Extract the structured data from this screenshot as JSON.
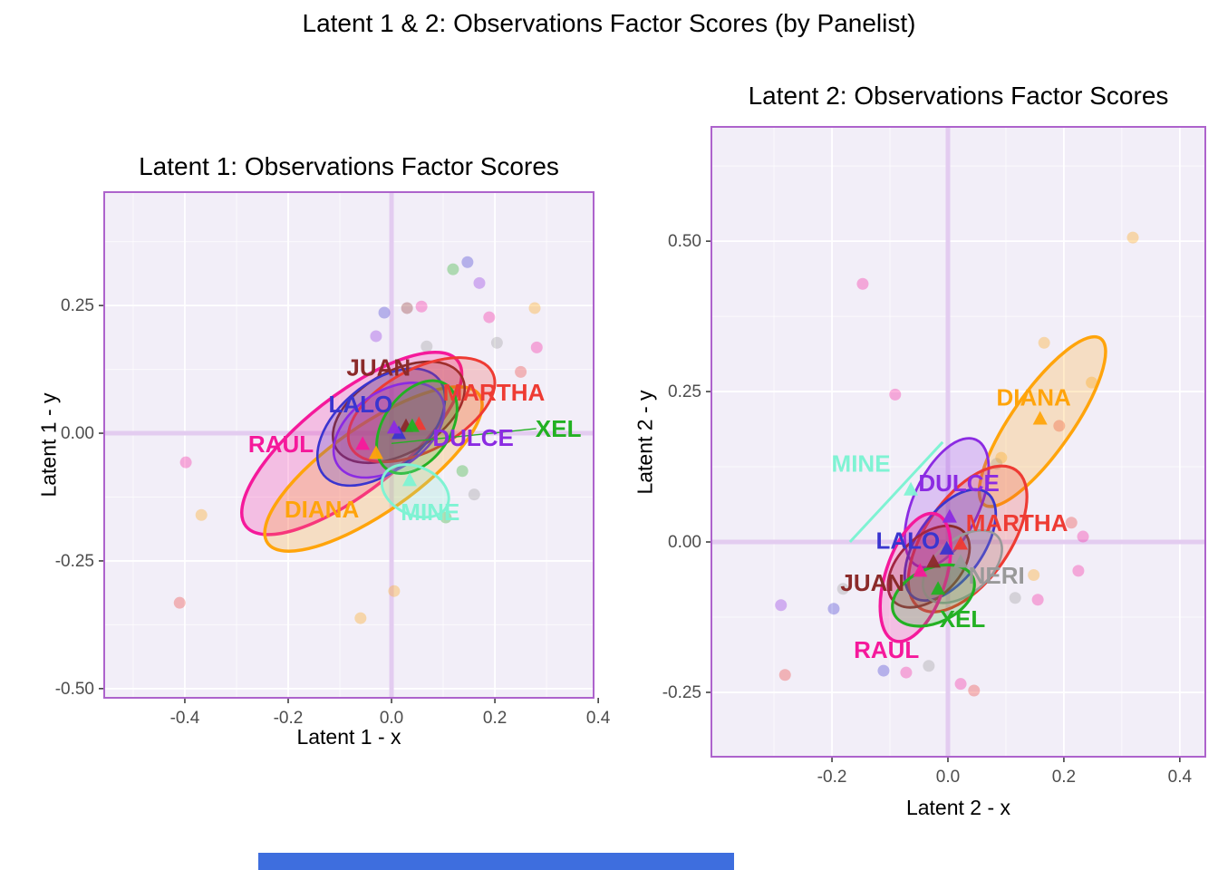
{
  "figure": {
    "title": "Latent 1 & 2: Observations Factor Scores (by Panelist)",
    "bottom_bar_color": "#3E6EDE"
  },
  "palette": {
    "JUAN": "#8B2A2A",
    "LALO": "#3A35CF",
    "MARTHA": "#EE3B33",
    "RAUL": "#F5199B",
    "DULCE": "#8B2BE2",
    "XEL": "#23B123",
    "DIANA": "#FFA40B",
    "MINE": "#7FF3D3",
    "NERI": "#999999"
  },
  "style": {
    "panel_bg": "#F2EEF8",
    "panel_border": "#AD63CC",
    "grid_major": "#FFFFFF",
    "grid_minor": "#FFFFFF",
    "zero_line": "#E3CCF0",
    "tick_color": "#333333",
    "tick_text_color": "#4D4D4D"
  },
  "chart_data": [
    {
      "type": "scatter",
      "title": "Latent 1: Observations Factor Scores",
      "xlabel": "Latent 1 - x",
      "ylabel": "Latent 1 - y",
      "xlim": [
        -0.556,
        0.391
      ],
      "ylim": [
        -0.518,
        0.472
      ],
      "grid": true,
      "legend": "none",
      "xticks": {
        "values": [
          -0.4,
          -0.2,
          0.0,
          0.2,
          0.4
        ],
        "labels": [
          "-0.4",
          "-0.2",
          "0.0",
          "0.2",
          "0.4"
        ],
        "minor": [
          -0.5,
          -0.3,
          -0.1,
          0.1,
          0.3
        ]
      },
      "yticks": {
        "values": [
          -0.5,
          -0.25,
          0.0,
          0.25
        ],
        "labels": [
          "-0.50",
          "-0.25",
          "0.00",
          "0.25"
        ],
        "minor": [
          -0.375,
          -0.125,
          0.125,
          0.375
        ]
      },
      "groups": [
        {
          "name": "RAUL",
          "ellipse": {
            "cx": -0.077,
            "cy": -0.02,
            "rx": 0.26,
            "ry": 0.095,
            "angle": 38,
            "lw": 3.5
          },
          "mean": [
            -0.056,
            -0.021
          ],
          "label": {
            "x": -0.214,
            "y": -0.021
          }
        },
        {
          "name": "DIANA",
          "ellipse": {
            "cx": -0.035,
            "cy": -0.07,
            "rx": 0.25,
            "ry": 0.085,
            "angle": 35,
            "lw": 3.5
          },
          "mean": [
            -0.03,
            -0.039
          ],
          "label": {
            "x": -0.135,
            "y": -0.149
          }
        },
        {
          "name": "JUAN",
          "ellipse": {
            "cx": 0.014,
            "cy": 0.041,
            "rx": 0.14,
            "ry": 0.08,
            "angle": 30,
            "lw": 2.6
          },
          "mean": [
            0.028,
            0.014
          ],
          "label": {
            "x": -0.025,
            "y": 0.129
          }
        },
        {
          "name": "LALO",
          "ellipse": {
            "cx": -0.02,
            "cy": 0.012,
            "rx": 0.145,
            "ry": 0.085,
            "angle": 40,
            "lw": 2.6
          },
          "mean": [
            0.014,
            0.0
          ],
          "label": {
            "x": -0.06,
            "y": 0.057
          }
        },
        {
          "name": "MARTHA",
          "ellipse": {
            "cx": 0.058,
            "cy": 0.046,
            "rx": 0.155,
            "ry": 0.08,
            "angle": 28,
            "lw": 3.0
          },
          "mean": [
            0.053,
            0.018
          ],
          "label": {
            "x": 0.198,
            "y": 0.08
          }
        },
        {
          "name": "DULCE",
          "ellipse": {
            "cx": -0.005,
            "cy": 0.006,
            "rx": 0.12,
            "ry": 0.075,
            "angle": 35,
            "lw": 2.6
          },
          "mean": [
            0.005,
            0.011
          ],
          "label": {
            "x": 0.158,
            "y": -0.009
          }
        },
        {
          "name": "XEL",
          "ellipse": {
            "cx": 0.049,
            "cy": 0.012,
            "rx": 0.1,
            "ry": 0.065,
            "angle": 55,
            "lw": 3.0
          },
          "mean": [
            0.04,
            0.014
          ],
          "label": {
            "x": 0.323,
            "y": 0.009
          },
          "leader": [
            [
              0.0,
              -0.02
            ],
            [
              0.28,
              0.009
            ]
          ]
        },
        {
          "name": "MINE",
          "ellipse": {
            "cx": 0.046,
            "cy": -0.113,
            "rx": 0.068,
            "ry": 0.047,
            "angle": -25,
            "lw": 3.0
          },
          "mean": [
            0.035,
            -0.092
          ],
          "label": {
            "x": 0.075,
            "y": -0.154
          }
        }
      ],
      "points": [
        [
          -0.398,
          -0.057,
          "RAUL"
        ],
        [
          -0.41,
          -0.332,
          "MARTHA"
        ],
        [
          -0.368,
          -0.16,
          "DIANA"
        ],
        [
          -0.03,
          0.19,
          "DULCE"
        ],
        [
          -0.014,
          0.236,
          "LALO"
        ],
        [
          0.03,
          0.245,
          "JUAN"
        ],
        [
          0.058,
          0.248,
          "RAUL"
        ],
        [
          0.068,
          0.17,
          "NERI"
        ],
        [
          0.119,
          0.321,
          "XEL"
        ],
        [
          0.147,
          0.335,
          "LALO"
        ],
        [
          0.17,
          0.294,
          "DULCE"
        ],
        [
          0.189,
          0.227,
          "RAUL"
        ],
        [
          0.204,
          0.177,
          "NERI"
        ],
        [
          0.25,
          0.12,
          "MARTHA"
        ],
        [
          0.277,
          0.245,
          "DIANA"
        ],
        [
          0.281,
          0.168,
          "RAUL"
        ],
        [
          0.137,
          -0.074,
          "XEL"
        ],
        [
          0.16,
          -0.12,
          "NERI"
        ],
        [
          0.105,
          -0.165,
          "XEL"
        ],
        [
          0.005,
          -0.309,
          "DIANA"
        ],
        [
          -0.06,
          -0.362,
          "DIANA"
        ]
      ]
    },
    {
      "type": "scatter",
      "title": "Latent 2: Observations Factor Scores",
      "xlabel": "Latent 2 - x",
      "ylabel": "Latent 2 - y",
      "xlim": [
        -0.408,
        0.444
      ],
      "ylim": [
        -0.357,
        0.69
      ],
      "grid": true,
      "legend": "none",
      "xticks": {
        "values": [
          -0.2,
          0.0,
          0.2,
          0.4
        ],
        "labels": [
          "-0.2",
          "0.0",
          "0.2",
          "0.4"
        ],
        "minor": [
          -0.3,
          -0.1,
          0.1,
          0.3
        ]
      },
      "yticks": {
        "values": [
          -0.25,
          0.0,
          0.25,
          0.5
        ],
        "labels": [
          "-0.25",
          "0.00",
          "0.25",
          "0.50"
        ],
        "minor": [
          -0.125,
          0.125,
          0.375,
          0.625
        ]
      },
      "groups": [
        {
          "name": "DIANA",
          "ellipse": {
            "cx": 0.163,
            "cy": 0.2,
            "rx": 0.175,
            "ry": 0.05,
            "angle": 55,
            "lw": 3.5
          },
          "mean": [
            0.159,
            0.205
          ],
          "label": {
            "x": 0.148,
            "y": 0.24
          }
        },
        {
          "name": "DULCE",
          "ellipse": {
            "cx": -0.002,
            "cy": 0.065,
            "rx": 0.12,
            "ry": 0.055,
            "angle": 65,
            "lw": 2.8
          },
          "mean": [
            0.003,
            0.042
          ],
          "label": {
            "x": 0.019,
            "y": 0.098
          }
        },
        {
          "name": "MARTHA",
          "ellipse": {
            "cx": 0.034,
            "cy": 0.005,
            "rx": 0.145,
            "ry": 0.07,
            "angle": 55,
            "lw": 3.2
          },
          "mean": [
            0.022,
            -0.003
          ],
          "label": {
            "x": 0.119,
            "y": 0.032
          }
        },
        {
          "name": "LALO",
          "ellipse": {
            "cx": 0.004,
            "cy": -0.005,
            "rx": 0.11,
            "ry": 0.055,
            "angle": 55,
            "lw": 2.8
          },
          "mean": [
            -0.002,
            -0.011
          ],
          "label": {
            "x": -0.069,
            "y": 0.002
          }
        },
        {
          "name": "JUAN",
          "ellipse": {
            "cx": -0.033,
            "cy": -0.041,
            "rx": 0.085,
            "ry": 0.05,
            "angle": 45,
            "lw": 2.8
          },
          "mean": [
            -0.025,
            -0.033
          ],
          "label": {
            "x": -0.13,
            "y": -0.068
          }
        },
        {
          "name": "NERI",
          "ellipse": {
            "cx": 0.025,
            "cy": -0.041,
            "rx": 0.08,
            "ry": 0.045,
            "angle": 40,
            "lw": 2.6
          },
          "mean": [
            0.022,
            -0.033
          ],
          "label": {
            "x": 0.084,
            "y": -0.056
          }
        },
        {
          "name": "RAUL",
          "ellipse": {
            "cx": -0.056,
            "cy": -0.059,
            "rx": 0.115,
            "ry": 0.05,
            "angle": 72,
            "lw": 3.5
          },
          "mean": [
            -0.048,
            -0.048
          ],
          "label": {
            "x": -0.106,
            "y": -0.179
          }
        },
        {
          "name": "XEL",
          "ellipse": {
            "cx": -0.025,
            "cy": -0.089,
            "rx": 0.075,
            "ry": 0.045,
            "angle": 25,
            "lw": 3.2
          },
          "mean": [
            -0.017,
            -0.078
          ],
          "label": {
            "x": 0.025,
            "y": -0.128
          }
        },
        {
          "name": "MINE",
          "line": [
            [
              -0.169,
              0.0
            ],
            [
              -0.009,
              0.166
            ]
          ],
          "mean": [
            -0.064,
            0.087
          ],
          "label": {
            "x": -0.15,
            "y": 0.13
          }
        }
      ],
      "points": [
        [
          0.319,
          0.506,
          "DIANA"
        ],
        [
          0.166,
          0.331,
          "DIANA"
        ],
        [
          0.248,
          0.265,
          "DIANA"
        ],
        [
          -0.147,
          0.429,
          "RAUL"
        ],
        [
          -0.091,
          0.245,
          "RAUL"
        ],
        [
          0.092,
          0.14,
          "DIANA"
        ],
        [
          0.084,
          0.13,
          "NERI"
        ],
        [
          0.192,
          0.193,
          "MARTHA"
        ],
        [
          0.233,
          0.009,
          "RAUL"
        ],
        [
          0.213,
          0.032,
          "MARTHA"
        ],
        [
          0.225,
          -0.048,
          "RAUL"
        ],
        [
          -0.288,
          -0.105,
          "DULCE"
        ],
        [
          -0.197,
          -0.111,
          "LALO"
        ],
        [
          -0.181,
          -0.078,
          "NERI"
        ],
        [
          -0.281,
          -0.221,
          "MARTHA"
        ],
        [
          -0.111,
          -0.214,
          "LALO"
        ],
        [
          -0.072,
          -0.217,
          "RAUL"
        ],
        [
          -0.033,
          -0.206,
          "NERI"
        ],
        [
          0.022,
          -0.236,
          "RAUL"
        ],
        [
          0.045,
          -0.247,
          "MARTHA"
        ],
        [
          0.116,
          -0.093,
          "NERI"
        ],
        [
          0.155,
          -0.096,
          "RAUL"
        ],
        [
          0.148,
          -0.055,
          "DIANA"
        ]
      ]
    }
  ]
}
